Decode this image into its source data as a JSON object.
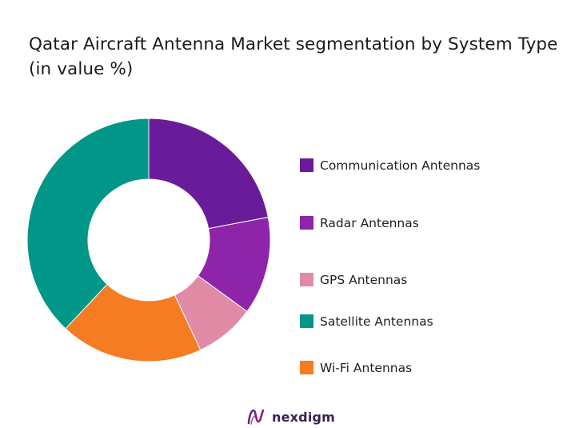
{
  "chart_data": {
    "type": "pie",
    "title": "Qatar Aircraft Antenna Market segmentation by System Type (in value %)",
    "donut": true,
    "start_angle_deg": 0,
    "direction": "clockwise",
    "categories": [
      "Communication Antennas",
      "Radar Antennas",
      "GPS Antennas",
      "Satellite Antennas",
      "Wi-Fi Antennas"
    ],
    "values": [
      22,
      13,
      8,
      38,
      19
    ],
    "draw_order": [
      0,
      1,
      2,
      4,
      3
    ],
    "colors": [
      "#6a1b9a",
      "#8e24aa",
      "#e08aa6",
      "#009688",
      "#f57c22"
    ],
    "legend_position": "right"
  },
  "brand": {
    "name": "nexdigm",
    "icon": "nexdigm-logo-icon"
  }
}
